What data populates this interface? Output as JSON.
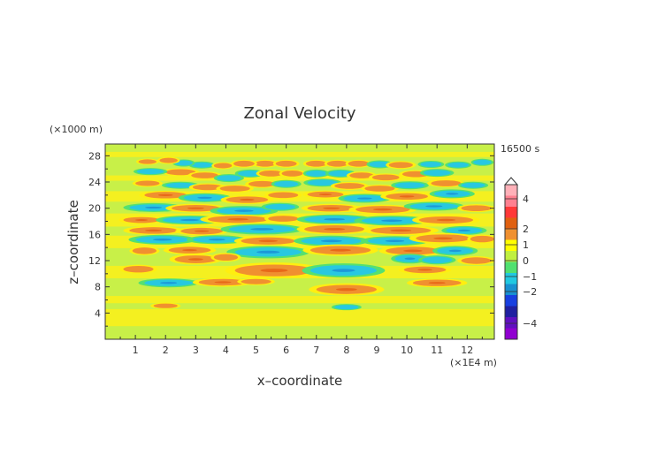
{
  "chart_data": {
    "type": "heatmap",
    "title": "Zonal Velocity",
    "time_label": "16500 s",
    "xlabel": "x–coordinate",
    "ylabel": "z–coordinate",
    "x_unit": "(×1E4 m)",
    "y_unit": "(×1000 m)",
    "xlim": [
      0,
      12.9
    ],
    "ylim": [
      0,
      29.8
    ],
    "x_ticks": [
      1,
      2,
      3,
      4,
      5,
      6,
      7,
      8,
      9,
      10,
      11,
      12
    ],
    "y_ticks": [
      4,
      8,
      12,
      16,
      20,
      24,
      28
    ],
    "colorbar": {
      "tick_labels": [
        "4",
        "2",
        "1",
        "0",
        "−1",
        "−2",
        "−4"
      ],
      "tick_values": [
        4,
        2,
        1,
        0,
        -1,
        -2,
        -4
      ],
      "colors": [
        "#ffb0b8",
        "#ff8090",
        "#ff3838",
        "#e06010",
        "#f09030",
        "#ffff00",
        "#c0f040",
        "#50e070",
        "#20c8e0",
        "#1890d0",
        "#1840e0",
        "#2020a0",
        "#6010c0",
        "#9000d0"
      ],
      "extend_top": true
    },
    "blobs": [
      {
        "x": 5.3,
        "z": 26.8,
        "w": 0.35,
        "h": 0.45,
        "v": 1
      },
      {
        "x": 4.6,
        "z": 26.8,
        "w": 0.35,
        "h": 0.45,
        "v": 1
      },
      {
        "x": 6.0,
        "z": 26.8,
        "w": 0.35,
        "h": 0.45,
        "v": 1
      },
      {
        "x": 3.2,
        "z": 26.6,
        "w": 0.35,
        "h": 0.4,
        "v": -1
      },
      {
        "x": 2.6,
        "z": 26.9,
        "w": 0.3,
        "h": 0.4,
        "v": -1
      },
      {
        "x": 2.1,
        "z": 27.3,
        "w": 0.3,
        "h": 0.4,
        "v": 1
      },
      {
        "x": 3.9,
        "z": 26.5,
        "w": 0.3,
        "h": 0.4,
        "v": 1
      },
      {
        "x": 7.0,
        "z": 26.8,
        "w": 0.35,
        "h": 0.45,
        "v": 1
      },
      {
        "x": 7.7,
        "z": 26.8,
        "w": 0.35,
        "h": 0.45,
        "v": 1
      },
      {
        "x": 8.4,
        "z": 26.8,
        "w": 0.35,
        "h": 0.45,
        "v": 1
      },
      {
        "x": 9.1,
        "z": 26.7,
        "w": 0.35,
        "h": 0.45,
        "v": -1
      },
      {
        "x": 9.8,
        "z": 26.6,
        "w": 0.4,
        "h": 0.45,
        "v": 1
      },
      {
        "x": 10.8,
        "z": 26.7,
        "w": 0.35,
        "h": 0.4,
        "v": -1
      },
      {
        "x": 11.7,
        "z": 26.6,
        "w": 0.35,
        "h": 0.4,
        "v": -1
      },
      {
        "x": 12.5,
        "z": 27.0,
        "w": 0.3,
        "h": 0.4,
        "v": -1
      },
      {
        "x": 1.4,
        "z": 27.1,
        "w": 0.3,
        "h": 0.35,
        "v": 1
      },
      {
        "x": 2.5,
        "z": 25.5,
        "w": 0.5,
        "h": 0.45,
        "v": 1
      },
      {
        "x": 3.3,
        "z": 25.0,
        "w": 0.45,
        "h": 0.45,
        "v": 1
      },
      {
        "x": 4.1,
        "z": 24.6,
        "w": 0.4,
        "h": 0.45,
        "v": -1
      },
      {
        "x": 4.8,
        "z": 25.3,
        "w": 0.4,
        "h": 0.45,
        "v": -1
      },
      {
        "x": 5.5,
        "z": 25.3,
        "w": 0.4,
        "h": 0.45,
        "v": 1
      },
      {
        "x": 6.2,
        "z": 25.3,
        "w": 0.35,
        "h": 0.45,
        "v": 1
      },
      {
        "x": 7.0,
        "z": 25.3,
        "w": 0.35,
        "h": 0.45,
        "v": -1
      },
      {
        "x": 7.8,
        "z": 25.3,
        "w": 0.4,
        "h": 0.45,
        "v": -1
      },
      {
        "x": 8.5,
        "z": 25.0,
        "w": 0.4,
        "h": 0.45,
        "v": 1
      },
      {
        "x": 9.3,
        "z": 24.7,
        "w": 0.45,
        "h": 0.45,
        "v": 1
      },
      {
        "x": 10.3,
        "z": 25.2,
        "w": 0.45,
        "h": 0.45,
        "v": 1
      },
      {
        "x": 11.0,
        "z": 25.4,
        "w": 0.45,
        "h": 0.45,
        "v": -1
      },
      {
        "x": 1.5,
        "z": 25.6,
        "w": 0.45,
        "h": 0.4,
        "v": -1
      },
      {
        "x": 1.4,
        "z": 23.8,
        "w": 0.4,
        "h": 0.4,
        "v": 1
      },
      {
        "x": 2.5,
        "z": 23.5,
        "w": 0.5,
        "h": 0.4,
        "v": -1
      },
      {
        "x": 3.4,
        "z": 23.2,
        "w": 0.5,
        "h": 0.45,
        "v": 1
      },
      {
        "x": 4.3,
        "z": 23.0,
        "w": 0.5,
        "h": 0.45,
        "v": 1
      },
      {
        "x": 5.2,
        "z": 23.7,
        "w": 0.45,
        "h": 0.45,
        "v": 1
      },
      {
        "x": 6.0,
        "z": 23.7,
        "w": 0.4,
        "h": 0.45,
        "v": -1
      },
      {
        "x": 7.2,
        "z": 23.9,
        "w": 0.5,
        "h": 0.45,
        "v": -1
      },
      {
        "x": 8.1,
        "z": 23.4,
        "w": 0.5,
        "h": 0.45,
        "v": 1
      },
      {
        "x": 9.1,
        "z": 23.0,
        "w": 0.5,
        "h": 0.45,
        "v": 1
      },
      {
        "x": 10.1,
        "z": 23.5,
        "w": 0.5,
        "h": 0.45,
        "v": -1
      },
      {
        "x": 11.3,
        "z": 23.8,
        "w": 0.5,
        "h": 0.45,
        "v": 1
      },
      {
        "x": 12.2,
        "z": 23.5,
        "w": 0.4,
        "h": 0.4,
        "v": -1
      },
      {
        "x": 2.0,
        "z": 22.0,
        "w": 0.7,
        "h": 0.5,
        "v": 1
      },
      {
        "x": 3.3,
        "z": 21.6,
        "w": 0.7,
        "h": 0.5,
        "v": -1
      },
      {
        "x": 4.7,
        "z": 21.3,
        "w": 0.7,
        "h": 0.5,
        "v": 1
      },
      {
        "x": 5.9,
        "z": 22.0,
        "w": 0.5,
        "h": 0.45,
        "v": 1
      },
      {
        "x": 7.3,
        "z": 22.1,
        "w": 0.6,
        "h": 0.45,
        "v": 1
      },
      {
        "x": 8.6,
        "z": 21.5,
        "w": 0.7,
        "h": 0.5,
        "v": -1
      },
      {
        "x": 10.0,
        "z": 21.8,
        "w": 0.7,
        "h": 0.5,
        "v": 1
      },
      {
        "x": 11.5,
        "z": 22.2,
        "w": 0.6,
        "h": 0.5,
        "v": -1
      },
      {
        "x": 1.6,
        "z": 20.1,
        "w": 0.8,
        "h": 0.5,
        "v": -1
      },
      {
        "x": 3.0,
        "z": 20.0,
        "w": 0.8,
        "h": 0.5,
        "v": 1
      },
      {
        "x": 4.6,
        "z": 19.6,
        "w": 0.9,
        "h": 0.55,
        "v": -1
      },
      {
        "x": 5.8,
        "z": 20.2,
        "w": 0.5,
        "h": 0.45,
        "v": -1
      },
      {
        "x": 7.5,
        "z": 20.0,
        "w": 0.8,
        "h": 0.5,
        "v": 1
      },
      {
        "x": 9.2,
        "z": 19.8,
        "w": 0.9,
        "h": 0.55,
        "v": 1
      },
      {
        "x": 10.9,
        "z": 20.3,
        "w": 0.8,
        "h": 0.5,
        "v": -1
      },
      {
        "x": 12.3,
        "z": 20.0,
        "w": 0.5,
        "h": 0.45,
        "v": 1
      },
      {
        "x": 1.2,
        "z": 18.2,
        "w": 0.6,
        "h": 0.45,
        "v": 1
      },
      {
        "x": 2.8,
        "z": 18.2,
        "w": 0.9,
        "h": 0.5,
        "v": -1
      },
      {
        "x": 4.4,
        "z": 18.3,
        "w": 1.0,
        "h": 0.55,
        "v": 1
      },
      {
        "x": 5.9,
        "z": 18.4,
        "w": 0.5,
        "h": 0.45,
        "v": 1
      },
      {
        "x": 7.6,
        "z": 18.3,
        "w": 1.0,
        "h": 0.55,
        "v": -1
      },
      {
        "x": 9.5,
        "z": 18.1,
        "w": 1.0,
        "h": 0.55,
        "v": -1
      },
      {
        "x": 11.3,
        "z": 18.2,
        "w": 0.9,
        "h": 0.55,
        "v": 1
      },
      {
        "x": 1.6,
        "z": 16.6,
        "w": 0.8,
        "h": 0.5,
        "v": 1
      },
      {
        "x": 3.2,
        "z": 16.5,
        "w": 0.7,
        "h": 0.5,
        "v": 1
      },
      {
        "x": 5.2,
        "z": 16.8,
        "w": 1.1,
        "h": 0.6,
        "v": -1
      },
      {
        "x": 7.6,
        "z": 16.8,
        "w": 1.0,
        "h": 0.6,
        "v": 1
      },
      {
        "x": 9.8,
        "z": 16.6,
        "w": 1.0,
        "h": 0.55,
        "v": 1
      },
      {
        "x": 11.9,
        "z": 16.6,
        "w": 0.6,
        "h": 0.5,
        "v": -1
      },
      {
        "x": 1.9,
        "z": 15.2,
        "w": 0.9,
        "h": 0.55,
        "v": -1
      },
      {
        "x": 3.7,
        "z": 15.2,
        "w": 0.8,
        "h": 0.5,
        "v": -1
      },
      {
        "x": 5.4,
        "z": 15.0,
        "w": 0.9,
        "h": 0.55,
        "v": 1
      },
      {
        "x": 7.5,
        "z": 15.0,
        "w": 1.0,
        "h": 0.6,
        "v": -1
      },
      {
        "x": 9.6,
        "z": 15.0,
        "w": 0.9,
        "h": 0.55,
        "v": -1
      },
      {
        "x": 11.2,
        "z": 15.4,
        "w": 0.9,
        "h": 0.6,
        "v": 1
      },
      {
        "x": 12.5,
        "z": 15.3,
        "w": 0.4,
        "h": 0.5,
        "v": 1
      },
      {
        "x": 1.3,
        "z": 13.5,
        "w": 0.4,
        "h": 0.5,
        "v": 1
      },
      {
        "x": 2.8,
        "z": 13.6,
        "w": 0.7,
        "h": 0.5,
        "v": 1
      },
      {
        "x": 5.4,
        "z": 13.3,
        "w": 1.1,
        "h": 0.7,
        "v": -1
      },
      {
        "x": 7.8,
        "z": 13.6,
        "w": 1.0,
        "h": 0.65,
        "v": 1
      },
      {
        "x": 10.2,
        "z": 13.5,
        "w": 0.9,
        "h": 0.6,
        "v": 1
      },
      {
        "x": 11.6,
        "z": 13.5,
        "w": 0.6,
        "h": 0.55,
        "v": -1
      },
      {
        "x": 3.0,
        "z": 12.2,
        "w": 0.7,
        "h": 0.6,
        "v": 1
      },
      {
        "x": 4.0,
        "z": 12.5,
        "w": 0.4,
        "h": 0.5,
        "v": 1
      },
      {
        "x": 10.1,
        "z": 12.3,
        "w": 0.5,
        "h": 0.55,
        "v": -1
      },
      {
        "x": 11.0,
        "z": 12.1,
        "w": 0.5,
        "h": 0.5,
        "v": -1
      },
      {
        "x": 12.3,
        "z": 12.0,
        "w": 0.5,
        "h": 0.5,
        "v": 1
      },
      {
        "x": 1.1,
        "z": 10.7,
        "w": 0.5,
        "h": 0.5,
        "v": 1
      },
      {
        "x": 5.6,
        "z": 10.5,
        "w": 1.3,
        "h": 0.9,
        "v": 1
      },
      {
        "x": 7.9,
        "z": 10.5,
        "w": 1.1,
        "h": 0.8,
        "v": -1
      },
      {
        "x": 10.6,
        "z": 10.6,
        "w": 0.7,
        "h": 0.5,
        "v": 1
      },
      {
        "x": 2.1,
        "z": 8.6,
        "w": 0.8,
        "h": 0.5,
        "v": -1
      },
      {
        "x": 3.9,
        "z": 8.7,
        "w": 0.8,
        "h": 0.5,
        "v": 1
      },
      {
        "x": 5.0,
        "z": 8.8,
        "w": 0.5,
        "h": 0.4,
        "v": 1
      },
      {
        "x": 8.0,
        "z": 7.6,
        "w": 1.0,
        "h": 0.7,
        "v": 1
      },
      {
        "x": 11.0,
        "z": 8.6,
        "w": 0.8,
        "h": 0.5,
        "v": 1
      },
      {
        "x": 2.0,
        "z": 5.1,
        "w": 0.4,
        "h": 0.35,
        "v": 1
      },
      {
        "x": 8.0,
        "z": 4.9,
        "w": 0.4,
        "h": 0.35,
        "v": -1
      }
    ]
  }
}
